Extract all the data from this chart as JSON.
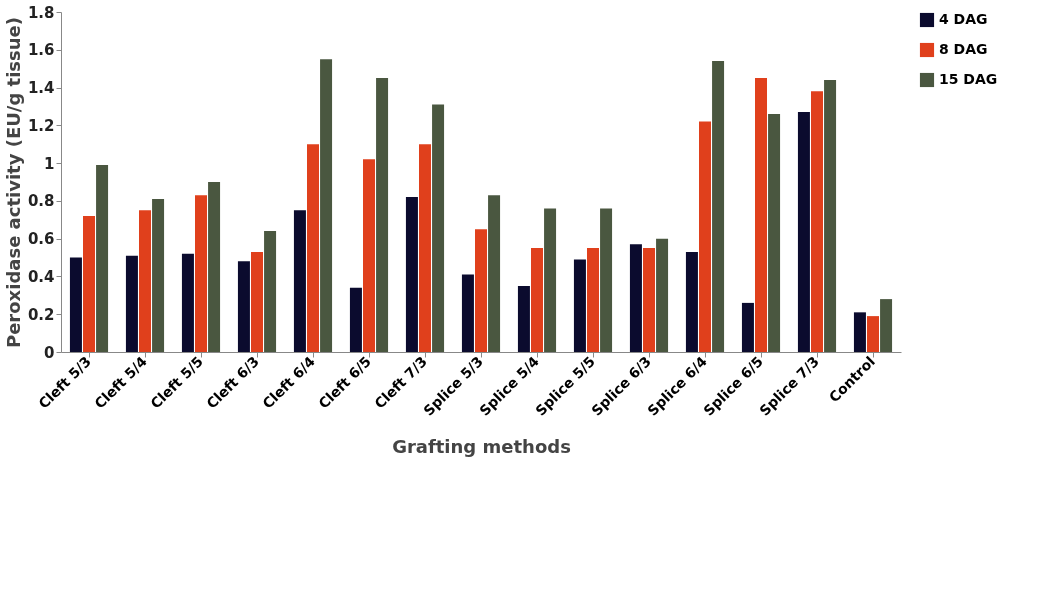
{
  "chart_data": {
    "type": "bar",
    "xlabel": "Grafting methods",
    "ylabel": "Peroxidase activity (EU/g tissue)",
    "categories": [
      "Cleft 5/3",
      "Cleft 5/4",
      "Cleft 5/5",
      "Cleft 6/3",
      "Cleft 6/4",
      "Cleft 6/5",
      "Cleft 7/3",
      "Splice 5/3",
      "Splice 5/4",
      "Splice 5/5",
      "Splice 6/3",
      "Splice 6/4",
      "Splice 6/5",
      "Splice 7/3",
      "Control"
    ],
    "series": [
      {
        "name": "4 DAG",
        "color": "#0b0b2e",
        "values": [
          0.5,
          0.51,
          0.52,
          0.48,
          0.75,
          0.34,
          0.82,
          0.41,
          0.35,
          0.49,
          0.57,
          0.53,
          0.26,
          1.27,
          0.21
        ]
      },
      {
        "name": "8 DAG",
        "color": "#e0401c",
        "values": [
          0.72,
          0.75,
          0.83,
          0.53,
          1.1,
          1.02,
          1.1,
          0.65,
          0.55,
          0.55,
          0.55,
          1.22,
          1.45,
          1.38,
          0.19
        ]
      },
      {
        "name": "15 DAG",
        "color": "#4a5740",
        "values": [
          0.99,
          0.81,
          0.9,
          0.64,
          1.55,
          1.45,
          1.31,
          0.83,
          0.76,
          0.76,
          0.6,
          1.54,
          1.26,
          1.44,
          0.28
        ]
      }
    ],
    "ylim": [
      0,
      1.8
    ],
    "yticks": [
      0,
      0.2,
      0.4,
      0.6,
      0.8,
      1,
      1.2,
      1.4,
      1.6,
      1.8
    ],
    "grid": false,
    "legend": "right"
  }
}
